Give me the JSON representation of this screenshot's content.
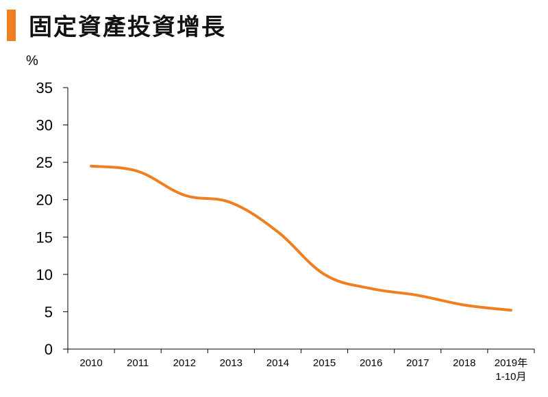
{
  "title": "固定資產投資增長",
  "chart_data": {
    "type": "line",
    "title": "固定資產投資增長",
    "ylabel": "%",
    "xlabel": "",
    "categories": [
      "2010",
      "2011",
      "2012",
      "2013",
      "2014",
      "2015",
      "2016",
      "2017",
      "2018",
      "2019年|1-10月"
    ],
    "values": [
      24.5,
      23.8,
      20.6,
      19.6,
      15.7,
      10.0,
      8.1,
      7.2,
      5.9,
      5.2
    ],
    "ylim": [
      0,
      35
    ],
    "yticks": [
      0,
      5,
      10,
      15,
      20,
      25,
      30,
      35
    ],
    "grid": false,
    "smooth": true,
    "colors": {
      "accent": "#F07F20",
      "line": "#F07F20",
      "axis": "#000000"
    }
  }
}
